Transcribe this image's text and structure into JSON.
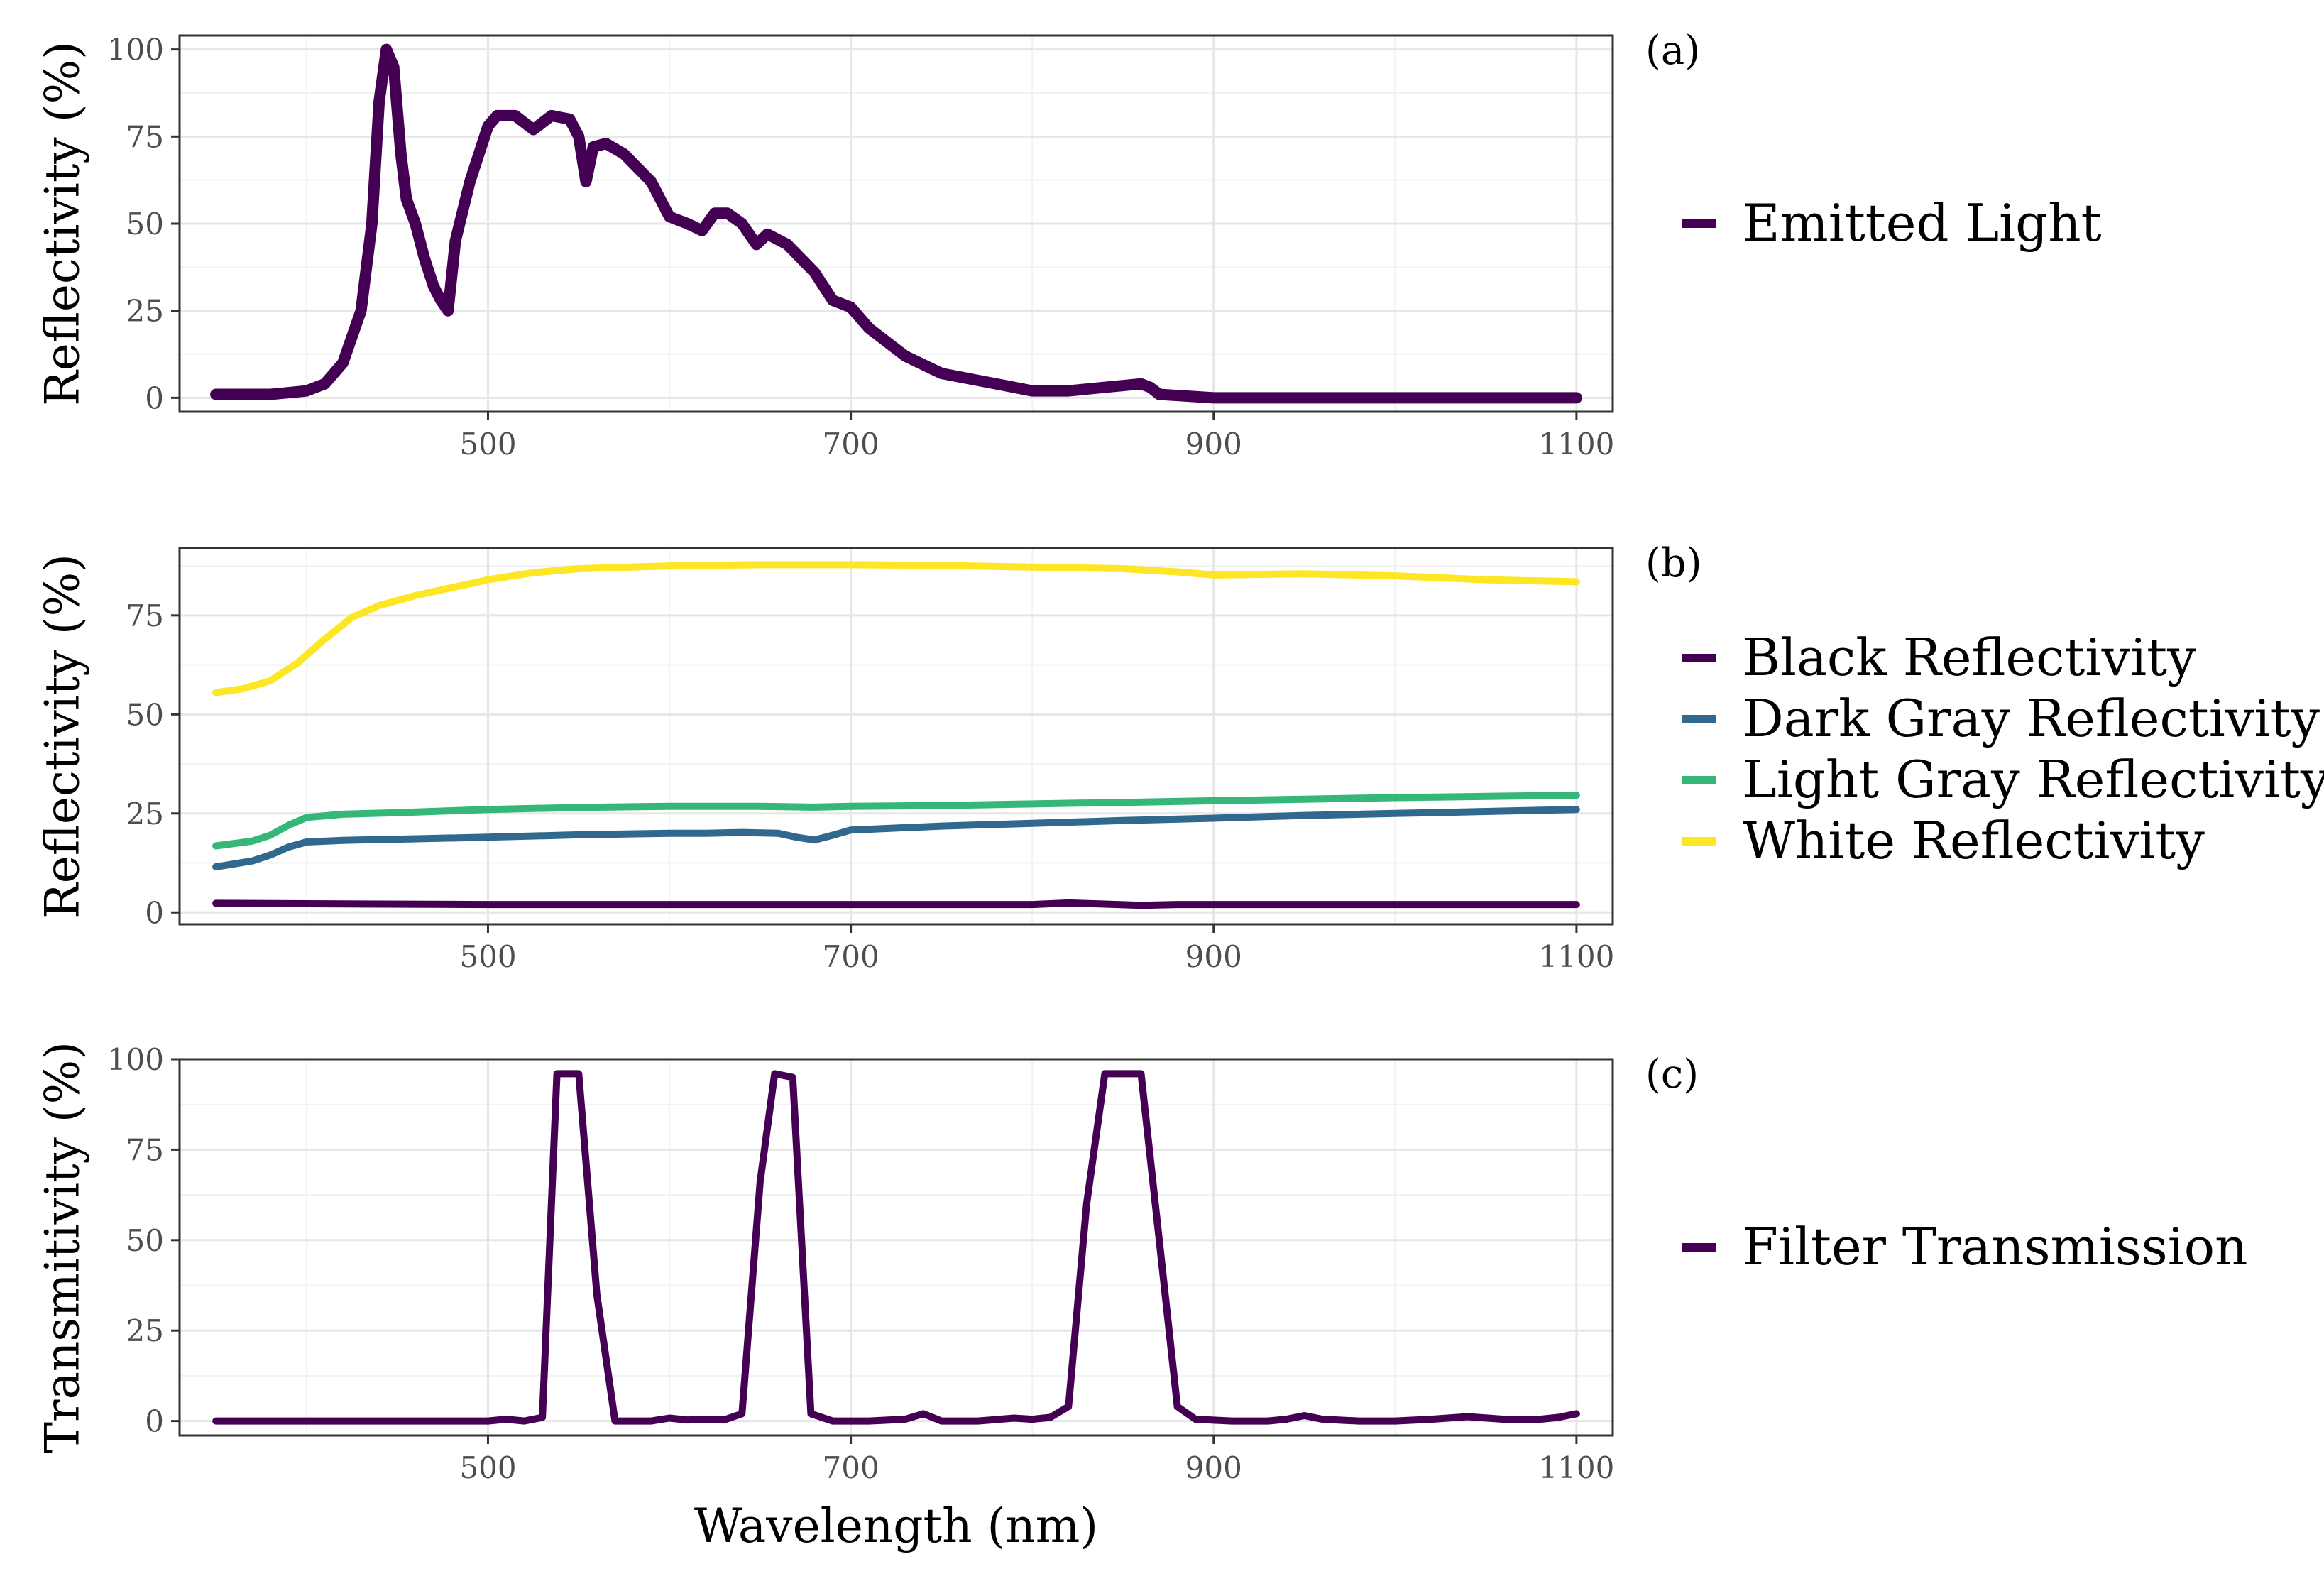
{
  "chart_data": [
    {
      "type": "line",
      "panel_tag": "(a)",
      "ylabel": "Reflectivity (%)",
      "xlabel": "",
      "xlim": [
        330,
        1120
      ],
      "ylim": [
        -4,
        104
      ],
      "x_ticks": [
        500,
        700,
        900,
        1100
      ],
      "y_ticks": [
        0,
        25,
        50,
        75,
        100
      ],
      "grid": true,
      "legend_position": "right",
      "series": [
        {
          "name": "Emitted Light",
          "color": "#440154",
          "points": [
            [
              350,
              1
            ],
            [
              380,
              1
            ],
            [
              400,
              2
            ],
            [
              410,
              4
            ],
            [
              420,
              10
            ],
            [
              430,
              25
            ],
            [
              436,
              50
            ],
            [
              440,
              85
            ],
            [
              444,
              100
            ],
            [
              448,
              95
            ],
            [
              452,
              70
            ],
            [
              455,
              57
            ],
            [
              460,
              50
            ],
            [
              465,
              40
            ],
            [
              470,
              32
            ],
            [
              474,
              28
            ],
            [
              478,
              25
            ],
            [
              482,
              45
            ],
            [
              490,
              62
            ],
            [
              500,
              78
            ],
            [
              505,
              81
            ],
            [
              515,
              81
            ],
            [
              525,
              77
            ],
            [
              535,
              81
            ],
            [
              545,
              80
            ],
            [
              550,
              75
            ],
            [
              554,
              62
            ],
            [
              558,
              72
            ],
            [
              565,
              73
            ],
            [
              575,
              70
            ],
            [
              590,
              62
            ],
            [
              600,
              52
            ],
            [
              610,
              50
            ],
            [
              618,
              48
            ],
            [
              625,
              53
            ],
            [
              632,
              53
            ],
            [
              640,
              50
            ],
            [
              648,
              44
            ],
            [
              654,
              47
            ],
            [
              665,
              44
            ],
            [
              680,
              36
            ],
            [
              690,
              28
            ],
            [
              700,
              26
            ],
            [
              710,
              20
            ],
            [
              730,
              12
            ],
            [
              750,
              7
            ],
            [
              770,
              5
            ],
            [
              790,
              3
            ],
            [
              800,
              2
            ],
            [
              820,
              2
            ],
            [
              840,
              3
            ],
            [
              860,
              4
            ],
            [
              865,
              3
            ],
            [
              870,
              1
            ],
            [
              900,
              0
            ],
            [
              1000,
              0
            ],
            [
              1100,
              0
            ]
          ]
        }
      ]
    },
    {
      "type": "line",
      "panel_tag": "(b)",
      "ylabel": "Reflectivity (%)",
      "xlabel": "",
      "xlim": [
        330,
        1120
      ],
      "ylim": [
        -3,
        92
      ],
      "x_ticks": [
        500,
        700,
        900,
        1100
      ],
      "y_ticks": [
        0,
        25,
        50,
        75
      ],
      "grid": true,
      "legend_position": "right",
      "series": [
        {
          "name": "Black Reflectivity",
          "color": "#440154",
          "points": [
            [
              350,
              2.3
            ],
            [
              400,
              2.2
            ],
            [
              500,
              2.0
            ],
            [
              600,
              2.0
            ],
            [
              700,
              2.0
            ],
            [
              800,
              2.0
            ],
            [
              820,
              2.4
            ],
            [
              840,
              2.1
            ],
            [
              860,
              1.8
            ],
            [
              880,
              2.0
            ],
            [
              900,
              2.0
            ],
            [
              1000,
              2.0
            ],
            [
              1100,
              2.0
            ]
          ]
        },
        {
          "name": "Dark Gray Reflectivity",
          "color": "#31688E",
          "points": [
            [
              350,
              11.5
            ],
            [
              370,
              13
            ],
            [
              380,
              14.5
            ],
            [
              390,
              16.5
            ],
            [
              400,
              17.8
            ],
            [
              420,
              18.2
            ],
            [
              450,
              18.5
            ],
            [
              500,
              19.0
            ],
            [
              550,
              19.6
            ],
            [
              600,
              20.0
            ],
            [
              620,
              20.0
            ],
            [
              640,
              20.2
            ],
            [
              660,
              20.0
            ],
            [
              670,
              19.0
            ],
            [
              680,
              18.3
            ],
            [
              690,
              19.5
            ],
            [
              700,
              20.8
            ],
            [
              750,
              21.8
            ],
            [
              800,
              22.5
            ],
            [
              850,
              23.2
            ],
            [
              900,
              23.8
            ],
            [
              950,
              24.5
            ],
            [
              1000,
              25.0
            ],
            [
              1100,
              26.0
            ]
          ]
        },
        {
          "name": "Light Gray Reflectivity",
          "color": "#35B779",
          "points": [
            [
              350,
              16.8
            ],
            [
              370,
              18
            ],
            [
              380,
              19.5
            ],
            [
              390,
              22
            ],
            [
              400,
              24
            ],
            [
              420,
              24.8
            ],
            [
              450,
              25.2
            ],
            [
              500,
              26.0
            ],
            [
              550,
              26.5
            ],
            [
              600,
              26.8
            ],
            [
              650,
              26.8
            ],
            [
              680,
              26.6
            ],
            [
              700,
              26.8
            ],
            [
              750,
              27.0
            ],
            [
              800,
              27.4
            ],
            [
              850,
              27.8
            ],
            [
              900,
              28.2
            ],
            [
              950,
              28.6
            ],
            [
              1000,
              29.0
            ],
            [
              1100,
              29.6
            ]
          ]
        },
        {
          "name": "White Reflectivity",
          "color": "#FDE725",
          "points": [
            [
              350,
              55.5
            ],
            [
              365,
              56.5
            ],
            [
              380,
              58.5
            ],
            [
              395,
              63
            ],
            [
              410,
              69
            ],
            [
              425,
              74.5
            ],
            [
              440,
              77.5
            ],
            [
              460,
              80
            ],
            [
              480,
              82
            ],
            [
              500,
              84
            ],
            [
              525,
              85.8
            ],
            [
              550,
              86.8
            ],
            [
              600,
              87.5
            ],
            [
              650,
              87.8
            ],
            [
              700,
              87.8
            ],
            [
              750,
              87.6
            ],
            [
              800,
              87.2
            ],
            [
              850,
              86.8
            ],
            [
              880,
              86.0
            ],
            [
              900,
              85.2
            ],
            [
              950,
              85.5
            ],
            [
              1000,
              85.0
            ],
            [
              1050,
              84.0
            ],
            [
              1100,
              83.5
            ]
          ]
        }
      ]
    },
    {
      "type": "line",
      "panel_tag": "(c)",
      "ylabel": "Transmitivity (%)",
      "xlabel": "Wavelength (nm)",
      "xlim": [
        330,
        1120
      ],
      "ylim": [
        -4,
        100
      ],
      "x_ticks": [
        500,
        700,
        900,
        1100
      ],
      "y_ticks": [
        0,
        25,
        50,
        75,
        100
      ],
      "grid": true,
      "legend_position": "right",
      "series": [
        {
          "name": "Filter Transmission",
          "color": "#440154",
          "points": [
            [
              350,
              0
            ],
            [
              500,
              0
            ],
            [
              510,
              0.5
            ],
            [
              520,
              0
            ],
            [
              530,
              1
            ],
            [
              538,
              96
            ],
            [
              550,
              96
            ],
            [
              560,
              35
            ],
            [
              570,
              0
            ],
            [
              590,
              0
            ],
            [
              600,
              0.8
            ],
            [
              610,
              0.3
            ],
            [
              620,
              0.5
            ],
            [
              630,
              0.3
            ],
            [
              640,
              2
            ],
            [
              650,
              66
            ],
            [
              658,
              96
            ],
            [
              668,
              95
            ],
            [
              678,
              2
            ],
            [
              690,
              0
            ],
            [
              710,
              0
            ],
            [
              730,
              0.5
            ],
            [
              740,
              2
            ],
            [
              750,
              0
            ],
            [
              770,
              0
            ],
            [
              790,
              0.8
            ],
            [
              800,
              0.5
            ],
            [
              810,
              1
            ],
            [
              820,
              4
            ],
            [
              830,
              60
            ],
            [
              840,
              96
            ],
            [
              860,
              96
            ],
            [
              870,
              50
            ],
            [
              880,
              4
            ],
            [
              890,
              0.5
            ],
            [
              910,
              0
            ],
            [
              930,
              0
            ],
            [
              940,
              0.5
            ],
            [
              950,
              1.5
            ],
            [
              960,
              0.5
            ],
            [
              980,
              0
            ],
            [
              1000,
              0
            ],
            [
              1020,
              0.5
            ],
            [
              1040,
              1.2
            ],
            [
              1060,
              0.5
            ],
            [
              1080,
              0.5
            ],
            [
              1090,
              1
            ],
            [
              1100,
              2
            ]
          ]
        }
      ]
    }
  ]
}
